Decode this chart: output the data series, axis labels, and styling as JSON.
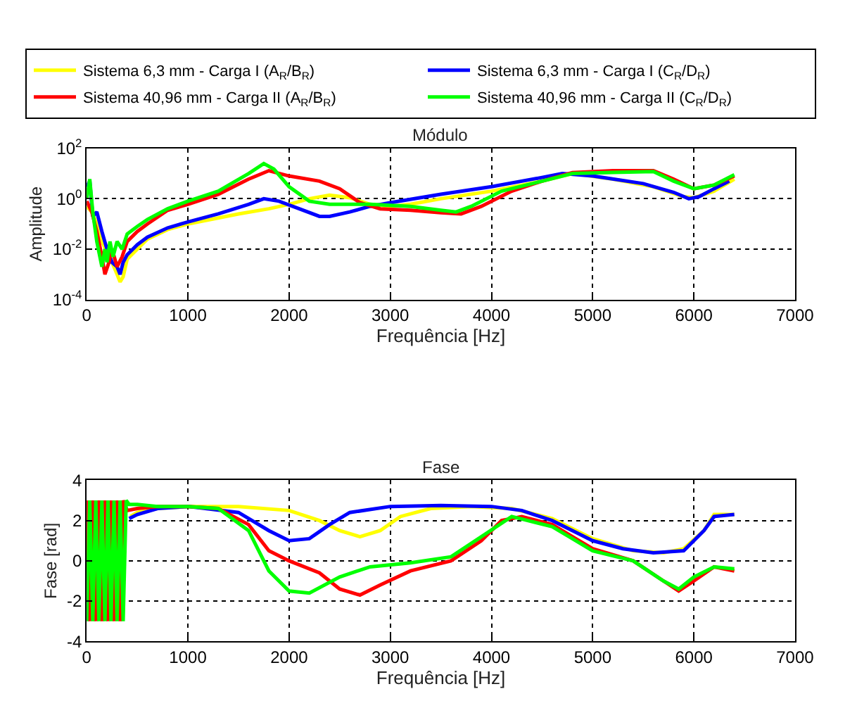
{
  "chart_data": [
    {
      "type": "line",
      "title": "Módulo",
      "xlabel": "Frequência [Hz]",
      "ylabel": "Amplitude",
      "log": "y",
      "grid": true,
      "legend": "top",
      "line_style": "solid",
      "marker": "none",
      "xlim": [
        0,
        7000
      ],
      "xticks": [
        0,
        1000,
        2000,
        3000,
        4000,
        5000,
        6000,
        7000
      ],
      "ylim": [
        0.0001,
        100
      ],
      "yticks": [
        {
          "value": 0.0001,
          "label": "10$^{-4}$"
        },
        {
          "value": 0.01,
          "label": "10$^{-2}$"
        },
        {
          "value": 1,
          "label": "10$^{0}$"
        },
        {
          "value": 100,
          "label": "10$^{2}$"
        }
      ],
      "series": [
        {
          "name": "Sistema 6,3 mm - Carga I (A$_{R}$/B$_{R}$)",
          "color": "#ffff00",
          "x": [
            0,
            50,
            100,
            150,
            200,
            250,
            300,
            330,
            360,
            400,
            500,
            600,
            800,
            1000,
            1500,
            1800,
            2000,
            2200,
            2400,
            2600,
            2800,
            3000,
            3200,
            3500,
            4000,
            4500,
            4800,
            5200,
            5600,
            5900,
            6000,
            6200,
            6400
          ],
          "values": [
            0.5,
            0.3,
            0.1,
            0.02,
            0.008,
            0.003,
            0.001,
            0.0005,
            0.0008,
            0.004,
            0.01,
            0.025,
            0.06,
            0.1,
            0.25,
            0.4,
            0.6,
            1.0,
            1.4,
            1.1,
            0.6,
            0.5,
            0.6,
            1.0,
            2.0,
            5,
            10,
            6,
            3,
            1.2,
            1.1,
            2,
            6
          ]
        },
        {
          "name": "Sistema 6,3 mm - Carga I (C$_{R}$/D$_{R}$)",
          "color": "#0000ff",
          "x": [
            0,
            30,
            60,
            100,
            150,
            200,
            250,
            300,
            330,
            360,
            400,
            500,
            600,
            800,
            1000,
            1300,
            1600,
            1750,
            1900,
            2100,
            2300,
            2400,
            2600,
            2800,
            3000,
            3500,
            4000,
            4500,
            4700,
            5000,
            5500,
            5800,
            5950,
            6050,
            6200,
            6350
          ],
          "values": [
            3,
            5,
            0.2,
            0.3,
            0.05,
            0.01,
            0.003,
            0.002,
            0.001,
            0.003,
            0.006,
            0.015,
            0.03,
            0.07,
            0.12,
            0.25,
            0.6,
            1.0,
            0.8,
            0.4,
            0.2,
            0.2,
            0.3,
            0.5,
            0.7,
            1.5,
            3,
            7,
            10,
            8,
            4,
            1.8,
            1.0,
            1.2,
            2.5,
            5
          ]
        },
        {
          "name": "Sistema 40,96 mm - Carga II (A$_{R}$/B$_{R}$)",
          "color": "#ff0000",
          "x": [
            0,
            50,
            100,
            150,
            180,
            220,
            250,
            300,
            350,
            400,
            500,
            600,
            800,
            1000,
            1300,
            1600,
            1800,
            2000,
            2300,
            2500,
            2700,
            2900,
            3200,
            3500,
            3700,
            3900,
            4200,
            4500,
            4800,
            5200,
            5600,
            5800,
            6000,
            6200,
            6400
          ],
          "values": [
            0.8,
            0.3,
            0.05,
            0.005,
            0.001,
            0.003,
            0.01,
            0.002,
            0.005,
            0.02,
            0.05,
            0.1,
            0.35,
            0.6,
            1.5,
            6,
            13,
            8,
            5,
            2.5,
            0.7,
            0.4,
            0.35,
            0.28,
            0.25,
            0.5,
            2,
            5,
            11,
            13,
            13,
            6,
            2.5,
            3.5,
            8
          ]
        },
        {
          "name": "Sistema 40,96 mm - Carga II (C$_{R}$/D$_{R}$)",
          "color": "#00ff00",
          "x": [
            0,
            30,
            60,
            100,
            130,
            150,
            180,
            200,
            230,
            260,
            300,
            350,
            400,
            500,
            600,
            800,
            1000,
            1300,
            1600,
            1750,
            1850,
            2000,
            2200,
            2400,
            2800,
            3200,
            3500,
            3650,
            3800,
            4100,
            4500,
            4800,
            5200,
            5600,
            5800,
            6000,
            6200,
            6400
          ],
          "values": [
            1,
            6,
            0.3,
            0.02,
            0.005,
            0.002,
            0.01,
            0.003,
            0.02,
            0.005,
            0.02,
            0.01,
            0.04,
            0.08,
            0.15,
            0.4,
            0.8,
            2,
            10,
            25,
            15,
            3,
            0.8,
            0.6,
            0.6,
            0.5,
            0.35,
            0.3,
            0.5,
            2,
            5,
            10,
            11,
            12,
            5,
            2.5,
            3.5,
            9
          ]
        }
      ]
    },
    {
      "type": "line",
      "title": "Fase",
      "xlabel": "Frequência [Hz]",
      "ylabel": "Fase [rad]",
      "grid": true,
      "line_style": "solid",
      "marker": "none",
      "xlim": [
        0,
        7000
      ],
      "xticks": [
        0,
        1000,
        2000,
        3000,
        4000,
        5000,
        6000,
        7000
      ],
      "ylim": [
        -4,
        4
      ],
      "yticks": [
        -4,
        -2,
        0,
        2,
        4
      ],
      "series": [
        {
          "color": "#ffff00",
          "x": [
            430,
            500,
            700,
            1000,
            1500,
            2000,
            2300,
            2500,
            2700,
            2900,
            3100,
            3400,
            3800,
            4200,
            4600,
            5000,
            5400,
            5700,
            5900,
            6100,
            6200,
            6400
          ],
          "values": [
            2.2,
            2.4,
            2.6,
            2.7,
            2.7,
            2.5,
            2.0,
            1.5,
            1.2,
            1.5,
            2.2,
            2.6,
            2.7,
            2.6,
            2.1,
            1.1,
            0.5,
            0.4,
            0.6,
            1.5,
            2.3,
            2.3
          ]
        },
        {
          "color": "#0000ff",
          "x": [
            420,
            500,
            700,
            1000,
            1500,
            1800,
            2000,
            2200,
            2400,
            2600,
            3000,
            3500,
            4000,
            4300,
            4600,
            5000,
            5300,
            5600,
            5900,
            6100,
            6200,
            6400
          ],
          "values": [
            2.1,
            2.3,
            2.6,
            2.7,
            2.4,
            1.5,
            1.0,
            1.1,
            1.8,
            2.4,
            2.7,
            2.75,
            2.7,
            2.5,
            2.0,
            1.0,
            0.6,
            0.4,
            0.5,
            1.5,
            2.2,
            2.3
          ]
        },
        {
          "color": "#ff0000",
          "x": [
            0,
            30,
            60,
            90,
            120,
            150,
            180,
            210,
            240,
            270,
            300,
            330,
            360,
            400,
            500,
            700,
            1000,
            1300,
            1600,
            1800,
            2000,
            2300,
            2500,
            2700,
            2900,
            3200,
            3600,
            3900,
            4100,
            4300,
            4600,
            5000,
            5400,
            5700,
            5850,
            6000,
            6200,
            6400
          ],
          "values": [
            3,
            -3,
            3,
            -3,
            3,
            -3,
            3,
            -3,
            3,
            -3,
            3,
            -3,
            3,
            2.5,
            2.6,
            2.7,
            2.7,
            2.6,
            1.8,
            0.5,
            0,
            -0.6,
            -1.4,
            -1.7,
            -1.2,
            -0.5,
            0,
            1.0,
            2.0,
            2.2,
            1.8,
            0.6,
            0,
            -1.0,
            -1.5,
            -1.0,
            -0.3,
            -0.5
          ]
        },
        {
          "color": "#00ff00",
          "x": [
            0,
            30,
            60,
            90,
            120,
            150,
            180,
            210,
            240,
            270,
            300,
            330,
            360,
            390,
            420,
            500,
            700,
            1000,
            1300,
            1600,
            1800,
            2000,
            2200,
            2500,
            2800,
            3200,
            3600,
            3900,
            4200,
            4600,
            5000,
            5400,
            5700,
            5850,
            6000,
            6200,
            6400
          ],
          "values": [
            -3,
            3,
            -3,
            3,
            -3,
            3,
            -3,
            3,
            -3,
            3,
            -3,
            3,
            -3,
            3,
            2.8,
            2.8,
            2.7,
            2.7,
            2.6,
            1.5,
            -0.5,
            -1.5,
            -1.6,
            -0.8,
            -0.3,
            -0.1,
            0.2,
            1.2,
            2.2,
            1.7,
            0.5,
            0,
            -1.0,
            -1.4,
            -0.8,
            -0.3,
            -0.4
          ]
        }
      ]
    }
  ]
}
